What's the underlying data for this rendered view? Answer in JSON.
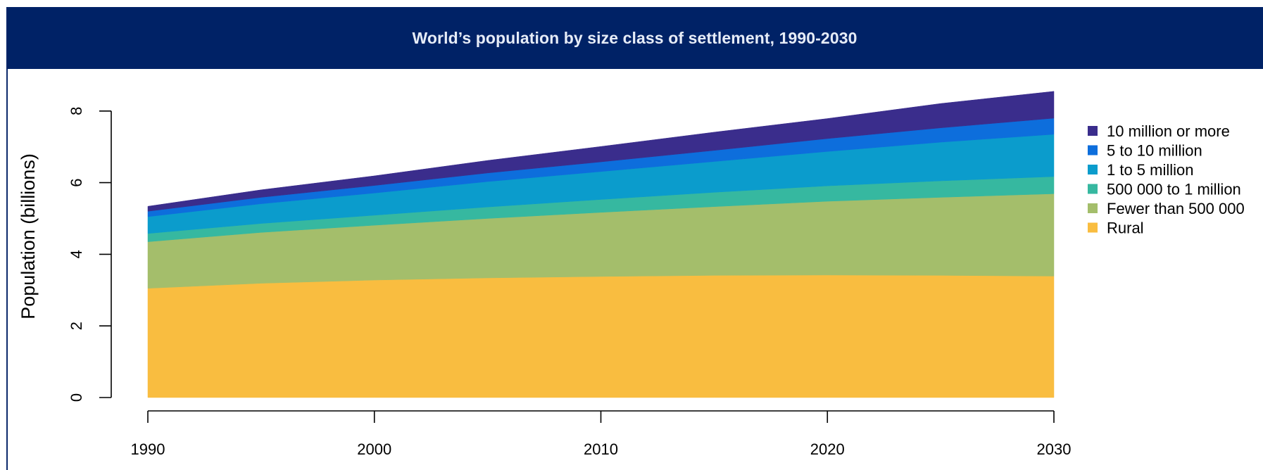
{
  "header": {
    "title": "World’s population by size class of settlement, 1990-2030"
  },
  "chart_data": {
    "type": "area",
    "stacked": true,
    "title": "World’s population by size class of settlement, 1990-2030",
    "xlabel": "",
    "ylabel": "Population (billions)",
    "x": [
      1990,
      1995,
      2000,
      2005,
      2010,
      2015,
      2020,
      2025,
      2030
    ],
    "xticks": [
      "1990",
      "2000",
      "2010",
      "2020",
      "2030"
    ],
    "xlim": [
      1990,
      2030
    ],
    "ylim": [
      0,
      8
    ],
    "yticks": [
      "0",
      "2",
      "4",
      "6",
      "8"
    ],
    "grid": false,
    "legend_position": "right",
    "series": [
      {
        "name": "Rural",
        "color": "#f9bd40",
        "values": [
          3.05,
          3.19,
          3.28,
          3.34,
          3.38,
          3.41,
          3.42,
          3.41,
          3.39
        ]
      },
      {
        "name": "Fewer than 500 000",
        "color": "#a4be6b",
        "values": [
          1.3,
          1.42,
          1.53,
          1.66,
          1.79,
          1.92,
          2.06,
          2.18,
          2.3
        ]
      },
      {
        "name": "500 000 to 1 million",
        "color": "#36b8a0",
        "values": [
          0.23,
          0.25,
          0.28,
          0.32,
          0.36,
          0.4,
          0.43,
          0.46,
          0.48
        ]
      },
      {
        "name": "1 to 5 million",
        "color": "#0b9ccc",
        "values": [
          0.47,
          0.55,
          0.62,
          0.71,
          0.78,
          0.86,
          0.96,
          1.08,
          1.18
        ]
      },
      {
        "name": "5 to 10 million",
        "color": "#0d6edc",
        "values": [
          0.15,
          0.18,
          0.21,
          0.24,
          0.27,
          0.31,
          0.36,
          0.4,
          0.45
        ]
      },
      {
        "name": "10 million or more",
        "color": "#3a2d8c",
        "values": [
          0.14,
          0.21,
          0.27,
          0.35,
          0.43,
          0.51,
          0.56,
          0.68,
          0.75
        ]
      }
    ],
    "legend_order": [
      "10 million or more",
      "5 to 10 million",
      "1 to 5 million",
      "500 000 to 1 million",
      "Fewer than 500 000",
      "Rural"
    ]
  }
}
